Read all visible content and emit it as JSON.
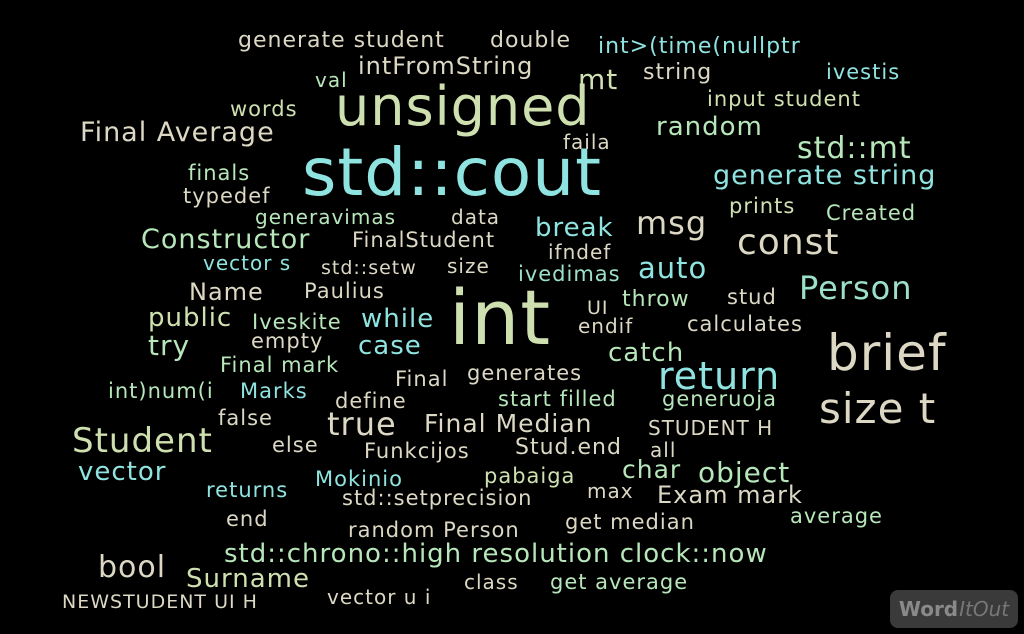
{
  "cloud": {
    "words": [
      {
        "text": "generate student",
        "color": "c4"
      },
      {
        "text": "double",
        "color": "c4"
      },
      {
        "text": "int>(time(nullptr",
        "color": "c1"
      },
      {
        "text": "intFromString",
        "color": "c4"
      },
      {
        "text": "val",
        "color": "c2"
      },
      {
        "text": "mt",
        "color": "c3"
      },
      {
        "text": "string",
        "color": "c4"
      },
      {
        "text": "ivestis",
        "color": "c1"
      },
      {
        "text": "words",
        "color": "c3"
      },
      {
        "text": "unsigned",
        "color": "c3"
      },
      {
        "text": "input student",
        "color": "c3"
      },
      {
        "text": "Final Average",
        "color": "c4"
      },
      {
        "text": "faila",
        "color": "c4"
      },
      {
        "text": "random",
        "color": "c2"
      },
      {
        "text": "std::mt",
        "color": "c2"
      },
      {
        "text": "finals",
        "color": "c2"
      },
      {
        "text": "std::cout",
        "color": "c1"
      },
      {
        "text": "generate string",
        "color": "c1"
      },
      {
        "text": "typedef",
        "color": "c4"
      },
      {
        "text": "generavimas",
        "color": "c2"
      },
      {
        "text": "data",
        "color": "c4"
      },
      {
        "text": "prints",
        "color": "c3"
      },
      {
        "text": "Created",
        "color": "c2"
      },
      {
        "text": "Constructor",
        "color": "c2"
      },
      {
        "text": "FinalStudent",
        "color": "c4"
      },
      {
        "text": "break",
        "color": "c1"
      },
      {
        "text": "msg",
        "color": "c4"
      },
      {
        "text": "const",
        "color": "c4"
      },
      {
        "text": "ifndef",
        "color": "c4"
      },
      {
        "text": "vector s",
        "color": "c1"
      },
      {
        "text": "std::setw",
        "color": "c4"
      },
      {
        "text": "size",
        "color": "c4"
      },
      {
        "text": "ivedimas",
        "color": "c5"
      },
      {
        "text": "auto",
        "color": "c1"
      },
      {
        "text": "Person",
        "color": "c5"
      },
      {
        "text": "Name",
        "color": "c4"
      },
      {
        "text": "Paulius",
        "color": "c4"
      },
      {
        "text": "int",
        "color": "c3"
      },
      {
        "text": "UI",
        "color": "c4"
      },
      {
        "text": "throw",
        "color": "c2"
      },
      {
        "text": "stud",
        "color": "c4"
      },
      {
        "text": "public",
        "color": "c3"
      },
      {
        "text": "Iveskite",
        "color": "c2"
      },
      {
        "text": "while",
        "color": "c1"
      },
      {
        "text": "endif",
        "color": "c4"
      },
      {
        "text": "calculates",
        "color": "c4"
      },
      {
        "text": "try",
        "color": "c2"
      },
      {
        "text": "empty",
        "color": "c4"
      },
      {
        "text": "case",
        "color": "c1"
      },
      {
        "text": "catch",
        "color": "c2"
      },
      {
        "text": "brief",
        "color": "c4"
      },
      {
        "text": "Final mark",
        "color": "c2"
      },
      {
        "text": "Final",
        "color": "c4"
      },
      {
        "text": "generates",
        "color": "c4"
      },
      {
        "text": "return",
        "color": "c1"
      },
      {
        "text": "int)num(i",
        "color": "c2"
      },
      {
        "text": "Marks",
        "color": "c1"
      },
      {
        "text": "define",
        "color": "c4"
      },
      {
        "text": "start filled",
        "color": "c2"
      },
      {
        "text": "generuoja",
        "color": "c2"
      },
      {
        "text": "size t",
        "color": "c4"
      },
      {
        "text": "false",
        "color": "c4"
      },
      {
        "text": "true",
        "color": "c4"
      },
      {
        "text": "Final Median",
        "color": "c4"
      },
      {
        "text": "STUDENT H",
        "color": "c4"
      },
      {
        "text": "Student",
        "color": "c3"
      },
      {
        "text": "else",
        "color": "c4"
      },
      {
        "text": "Funkcijos",
        "color": "c4"
      },
      {
        "text": "Stud.end",
        "color": "c4"
      },
      {
        "text": "all",
        "color": "c4"
      },
      {
        "text": "vector",
        "color": "c1"
      },
      {
        "text": "char",
        "color": "c2"
      },
      {
        "text": "object",
        "color": "c2"
      },
      {
        "text": "Mokinio",
        "color": "c1"
      },
      {
        "text": "pabaiga",
        "color": "c3"
      },
      {
        "text": "returns",
        "color": "c1"
      },
      {
        "text": "std::setprecision",
        "color": "c4"
      },
      {
        "text": "max",
        "color": "c4"
      },
      {
        "text": "Exam mark",
        "color": "c4"
      },
      {
        "text": "end",
        "color": "c4"
      },
      {
        "text": "random Person",
        "color": "c4"
      },
      {
        "text": "get median",
        "color": "c4"
      },
      {
        "text": "average",
        "color": "c2"
      },
      {
        "text": "bool",
        "color": "c4"
      },
      {
        "text": "std::chrono::high resolution clock::now",
        "color": "c2"
      },
      {
        "text": "Surname",
        "color": "c3"
      },
      {
        "text": "class",
        "color": "c4"
      },
      {
        "text": "get average",
        "color": "c2"
      },
      {
        "text": "NEWSTUDENT UI H",
        "color": "c4"
      },
      {
        "text": "vector u i",
        "color": "c4"
      }
    ]
  },
  "branding": {
    "logo_part1": "Word",
    "logo_part2": "ItOut"
  }
}
